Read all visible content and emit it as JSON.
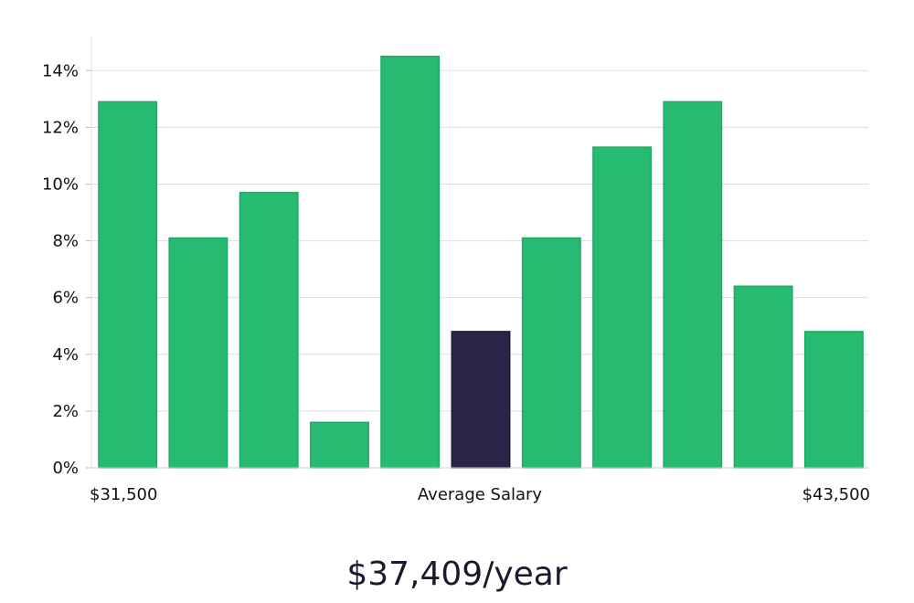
{
  "chart_data": {
    "type": "bar",
    "values": [
      12.9,
      8.1,
      9.7,
      1.6,
      14.5,
      4.8,
      8.1,
      11.3,
      12.9,
      6.4,
      4.8
    ],
    "highlight_index": 5,
    "x_labels": {
      "left": "$31,500",
      "center": "Average Salary",
      "right": "$43,500"
    },
    "y_ticks": [
      0,
      2,
      4,
      6,
      8,
      10,
      12,
      14
    ],
    "y_tick_suffix": "%",
    "ylim": [
      0,
      15.2
    ],
    "grid": true,
    "colors": {
      "bar": "#27bb72",
      "bar_edge": "#22a866",
      "highlight": "#2a2549",
      "grid": "#dddddd",
      "axis": "#e2e2e2"
    }
  },
  "headline": "$37,409/year"
}
